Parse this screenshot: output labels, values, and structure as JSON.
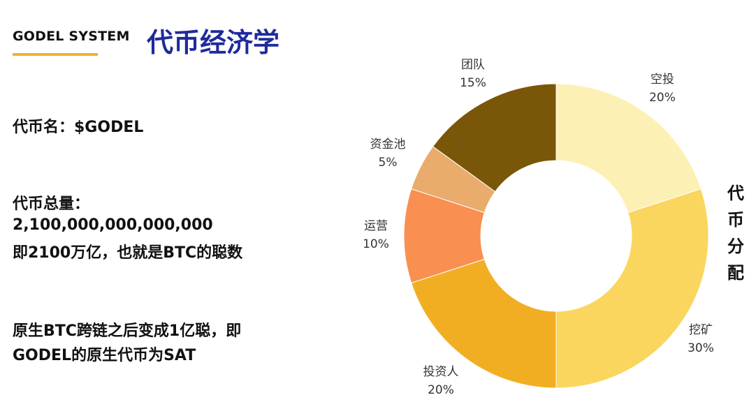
{
  "header": {
    "brand": "GODEL SYSTEM",
    "title": "代币经济学",
    "accent_color": "#f0b429",
    "title_color": "#1f2a9c"
  },
  "content": {
    "token_name": "代币名：$GODEL",
    "supply_label": "代币总量：",
    "supply_value": "2,100,000,000,000,000",
    "supply_note": "即2100万亿，也就是BTC的聪数",
    "note_line1": "原生BTC跨链之后变成1亿聪，即",
    "note_line2": "GODEL的原生代币为SAT"
  },
  "chart_side_label": [
    "代",
    "币",
    "分",
    "配"
  ],
  "chart_data": {
    "type": "pie",
    "donut": true,
    "categories": [
      "空投",
      "挖矿",
      "投资人",
      "运营",
      "资金池",
      "团队"
    ],
    "labels": [
      "20%",
      "30%",
      "20%",
      "10%",
      "5%",
      "15%"
    ],
    "values": [
      20,
      30,
      20,
      10,
      5,
      15
    ],
    "colors": [
      "#fdf0b4",
      "#fad65f",
      "#f2ae22",
      "#f98f50",
      "#e9ac6c",
      "#7a5608"
    ]
  }
}
